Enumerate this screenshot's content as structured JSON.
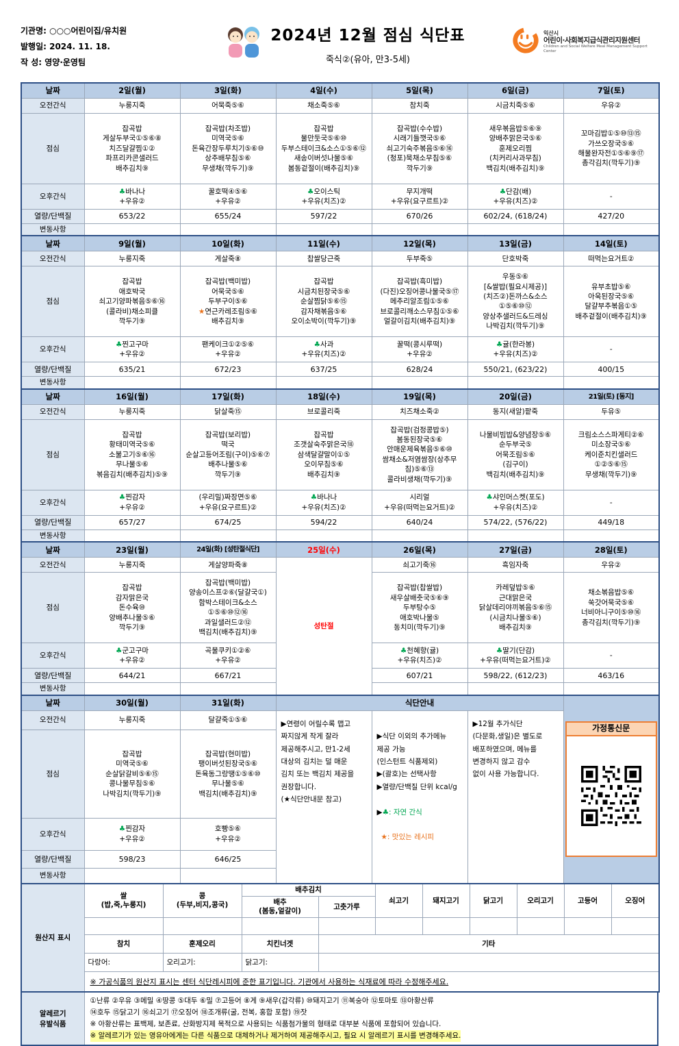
{
  "header": {
    "org": "기관명: ○○○어린이집/유치원",
    "issue": "발행일: 2024. 11. 18.",
    "author": "작  성: 영양·운영팀",
    "title": "2024년  12월  점심  식단표",
    "subtitle": "죽식②(유아, 만3-5세)",
    "logo_city": "익산시",
    "logo_name": "어린이·사회복지급식관리지원센터",
    "logo_eng": "Children and Social Welfare Meal Management Support Center"
  },
  "labels": {
    "date": "날짜",
    "am": "오전간식",
    "lunch": "점심",
    "pm": "오후간식",
    "kcal": "열량/단백질",
    "change": "변동사항"
  },
  "weeks": [
    {
      "days": [
        {
          "date": "2일(월)",
          "am": "누룽지죽",
          "lunch": "잡곡밥\n게살두부국①⑤⑥⑧\n치즈달걀찜①②\n파프리카콘샐러드\n배추김치⑨",
          "pm": "♣바나나\n+우유②",
          "kcal": "653/22"
        },
        {
          "date": "3일(화)",
          "am": "어묵죽⑤⑥",
          "lunch": "잡곡밥(차조밥)\n미역국⑤⑥\n돈육간장두루치기⑤⑥⑩\n상추배무침⑤⑥\n무생채(깍두기)⑨",
          "pm": "꿀호떡④⑤⑥\n+우유②",
          "kcal": "655/24"
        },
        {
          "date": "4일(수)",
          "am": "채소죽⑤⑥",
          "lunch": "잡곡밥\n물만둣국⑤⑥⑩\n두부스테이크&소스①⑤⑥⑫\n새송이버섯나물⑤⑥\n봄동겉절이(배추김치)⑨",
          "pm": "♣오이스틱\n+우유(치즈)②",
          "kcal": "597/22"
        },
        {
          "date": "5일(목)",
          "am": "참치죽",
          "lunch": "잡곡밥(수수밥)\n시래기들깻국⑤⑥\n쇠고기숙주볶음⑤⑥⑯\n(청포)묵채소무침⑤⑥\n깍두기⑨",
          "pm": "무지개떡\n+우유(요구르트)②",
          "kcal": "670/26"
        },
        {
          "date": "6일(금)",
          "am": "시금치죽⑤⑥",
          "lunch": "새우볶음밥⑤⑥⑨\n양배추맑은국⑤⑥\n훈제오리찜\n(치커리사과무침)\n백김치(배추김치)⑨",
          "pm": "♣단감(배)\n+우유(치즈)②",
          "kcal": "602/24, (618/24)"
        },
        {
          "date": "7일(토)",
          "am": "우유②",
          "lunch": "꼬마김밥①⑤⑩⑬⑮\n가쓰오장국⑤⑥\n해물완자전①⑤⑥⑨⑰\n총각김치(깍두기)⑨",
          "pm": "-",
          "kcal": "427/20"
        }
      ]
    },
    {
      "days": [
        {
          "date": "9일(월)",
          "am": "누룽지죽",
          "lunch": "잡곡밥\n애호박국\n쇠고기양파볶음⑤⑥⑯\n(콜라비)채소피클\n깍두기⑨",
          "pm": "♣찐고구마\n+우유②",
          "kcal": "635/21"
        },
        {
          "date": "10일(화)",
          "am": "게살죽⑧",
          "lunch": "잡곡밥(백미밥)\n어묵국⑤⑥\n두부구이⑤⑥\n★연근카레조림⑤⑥\n배추김치⑨",
          "pm": "팬케이크①②⑤⑥\n+우유②",
          "kcal": "672/23"
        },
        {
          "date": "11일(수)",
          "am": "찹쌀당근죽",
          "lunch": "잡곡밥\n시금치된장국⑤⑥\n순살찜닭⑤⑥⑮\n감자채볶음⑤⑥\n오이소박이(깍두기)⑨",
          "pm": "♣사과\n+우유(치즈)②",
          "kcal": "637/25"
        },
        {
          "date": "12일(목)",
          "am": "두부죽⑤",
          "lunch": "잡곡밥(흑미밥)\n(다진)오징어콩나물국⑤⑰\n메추리알조림①⑤⑥\n브로콜리깨소스무침①⑤⑥\n얼갈이김치(배추김치)⑨",
          "pm": "꿀떡(콩시루떡)\n+우유②",
          "kcal": "628/24"
        },
        {
          "date": "13일(금)",
          "am": "단호박죽",
          "lunch": "우동⑤⑥\n[&쌀밥(필요시제공)]\n(치즈②)돈까스&소스\n①⑤⑥⑩⑫\n양상추샐러드&드레싱\n나박김치(깍두기)⑨",
          "pm": "♣귤(한라봉)\n+우유(치즈)②",
          "kcal": "550/21, (623/22)"
        },
        {
          "date": "14일(토)",
          "am": "떠먹는요거트②",
          "lunch": "유부초밥⑤⑥\n아욱된장국⑤⑥\n달걀부추볶음①⑤\n배추겉절이(배추김치)⑨",
          "pm": "-",
          "kcal": "400/15"
        }
      ]
    },
    {
      "days": [
        {
          "date": "16일(월)",
          "am": "누룽지죽",
          "lunch": "잡곡밥\n황태미역국⑤⑥\n소불고기⑤⑥⑯\n무나물⑤⑥\n볶음김치(배추김치)⑤⑨",
          "pm": "♣찐감자\n+우유②",
          "kcal": "657/27"
        },
        {
          "date": "17일(화)",
          "am": "닭살죽⑮",
          "lunch": "잡곡밥(보리밥)\n떡국\n순살고등어조림(구이)⑤⑥⑦\n배추나물⑤⑥\n깍두기⑨",
          "pm": "(우리밀)짜장면⑤⑥\n+우유(요구르트)②",
          "kcal": "674/25"
        },
        {
          "date": "18일(수)",
          "am": "브로콜리죽",
          "lunch": "잡곡밥\n조갯살숙주맑은국⑱\n삼색달걀말이①⑤\n오이무침⑤⑥\n배추김치⑨",
          "pm": "♣바나나\n+우유(치즈)②",
          "kcal": "594/22"
        },
        {
          "date": "19일(목)",
          "am": "치즈채소죽②",
          "lunch": "잡곡밥(검정콩밥⑤)\n봄동된장국⑤⑥\n안매운제육볶음⑤⑥⑩\n쌈채소&저염쌈장(상추무침)⑤⑥⑬\n콜라비생채(깍두기)⑨",
          "pm": "시리얼\n+우유(떠먹는요거트)②",
          "kcal": "640/24"
        },
        {
          "date": "20일(금)",
          "am": "동지(새알)팥죽",
          "lunch": "나물비빔밥&양념장⑤⑥\n순두부국⑤\n어묵조림⑤⑥\n(김구이)\n백김치(배추김치)⑨",
          "pm": "♣샤인머스켓(포도)\n+우유(치즈)②",
          "kcal": "574/22, (576/22)"
        },
        {
          "date": "21일(토) [동지]",
          "am": "두유⑤",
          "lunch": "크림소스스파게티②⑥\n미소장국⑤⑥\n케이준치킨샐러드\n①②⑤⑥⑮\n무생채(깍두기)⑨",
          "pm": "-",
          "kcal": "449/18"
        }
      ]
    },
    {
      "days": [
        {
          "date": "23일(월)",
          "am": "누룽지죽",
          "lunch": "잡곡밥\n감자맑은국\n돈수육⑩\n양배추나물⑤⑥\n깍두기⑨",
          "pm": "♣군고구마\n+우유②",
          "kcal": "644/21"
        },
        {
          "date": "24일(화) [성탄절식단]",
          "am": "게살양파죽⑧",
          "lunch": "잡곡밥(백미밥)\n양송이스프②⑥(달걀국①)\n함박스테이크&소스\n①⑤⑥⑩⑫⑯\n과일샐러드②⑫\n백김치(배추김치)⑨",
          "pm": "곡물쿠키①②⑥\n+우유②",
          "kcal": "667/21"
        },
        {
          "date": "26일(목)",
          "am": "쇠고기죽⑯",
          "lunch": "잡곡밥(찹쌀밥)\n새우살배춧국⑤⑥⑨\n두부탕수⑤\n애호박나물⑤\n동치미(깍두기)⑨",
          "pm": "♣천혜향(귤)\n+우유(치즈)②",
          "kcal": "607/21"
        },
        {
          "date": "27일(금)",
          "am": "흑임자죽",
          "lunch": "카레덮밥⑤⑥\n근대맑은국\n닭살데리야끼볶음⑤⑥⑮\n(시금치나물⑤⑥)\n배추김치⑨",
          "pm": "♣딸기(단감)\n+우유(떠먹는요거트)②",
          "kcal": "598/22, (612/23)"
        },
        {
          "date": "28일(토)",
          "am": "우유②",
          "lunch": "채소볶음밥⑤⑥\n쑥갓어묵국⑤⑥\n너비아니구이⑤⑩⑯\n총각김치(깍두기)⑨",
          "pm": "-",
          "kcal": "463/16"
        }
      ]
    },
    {
      "days": [
        {
          "date": "30일(월)",
          "am": "누룽지죽",
          "lunch": "잡곡밥\n미역국⑤⑥\n순살닭갈비⑤⑥⑮\n콩나물무침⑤⑥\n나박김치(깍두기)⑨",
          "pm": "♣찐감자\n+우유②",
          "kcal": "598/23"
        },
        {
          "date": "31일(화)",
          "am": "달걀죽①⑤⑥",
          "lunch": "잡곡밥(현미밥)\n팽이버섯된장국⑤⑥\n돈육동그랑땡①⑤⑥⑩\n무나물⑤⑥\n백김치(배추김치)⑨",
          "pm": "호빵⑤⑥\n+우유②",
          "kcal": "646/25"
        }
      ]
    }
  ],
  "holiday": {
    "date": "25일(수)",
    "text": "성탄절"
  },
  "guide": {
    "title": "식단안내",
    "col1": "▶연령이 어릴수록 맵고\n짜지않게 작게 잘라\n제공해주시고, 만1-2세\n대상의 김치는 덜 매운\n김치 또는 백김치 제공을\n권장합니다.\n(★식단안내문 참고)",
    "col2a": "▶식단 이외의 추가메뉴\n  제공 가능\n(인스턴트 식품제외)\n▶(괄호)는 선택사항\n▶열량/단백질 단위 kcal/g",
    "col2_bullet": "▶",
    "col2_green": "♣: 자연 간식",
    "col2_orange": "★: 맛있는 레시피",
    "col3": "▶12월 추가식단\n(다문화,생일)은 별도로\n배포하였으며, 메뉴를\n변경하지 않고 감수\n없이 사용 가능합니다."
  },
  "newsletter": {
    "title": "가정통신문"
  },
  "origin": {
    "label": "원산지  표시",
    "top_headers": [
      "쌀\n(밥,죽,누룽지)",
      "콩\n(두부,비지,콩국)"
    ],
    "kimchi_header": "배추김치",
    "kimchi_sub": [
      "배추\n(봄동,얼갈이)",
      "고춧가루"
    ],
    "meat_headers": [
      "쇠고기",
      "돼지고기",
      "닭고기",
      "오리고기",
      "고등어",
      "오징어"
    ],
    "row2": [
      "참치",
      "훈제오리",
      "치킨너겟",
      "기타"
    ],
    "row3": [
      "다랑어:",
      "오리고기:",
      "닭고기:"
    ],
    "note": "※ 가공식품의 원산지 표시는 센터 식단레시피에 준한 표기입니다. 기관에서 사용하는 식재료에 따라 수정해주세요."
  },
  "allergy": {
    "label": "알레르기\n유발식품",
    "line1": "①난류 ②우유 ③메밀 ④땅콩 ⑤대두 ⑥밀 ⑦고등어 ⑧게 ⑨새우(갑각류) ⑩돼지고기 ⑪복숭아 ⑫토마토 ⑬아황산류",
    "line2": "⑭호두 ⑮닭고기 ⑯쇠고기 ⑰오징어 ⑱조개류(굴, 전복, 홍합 포함) ⑲잣",
    "line3": "※ 아황산류는 표백제, 보존료, 산화방지제 목적으로 사용되는 식품첨가물의 형태로 대부분 식품에 포함되어 있습니다.",
    "line4": "※ 알레르기가 있는 영유아에게는 다른 식품으로 대체하거나 제거하여 제공해주시고, 필요 시 알레르기 표시를 변경해주세요."
  }
}
